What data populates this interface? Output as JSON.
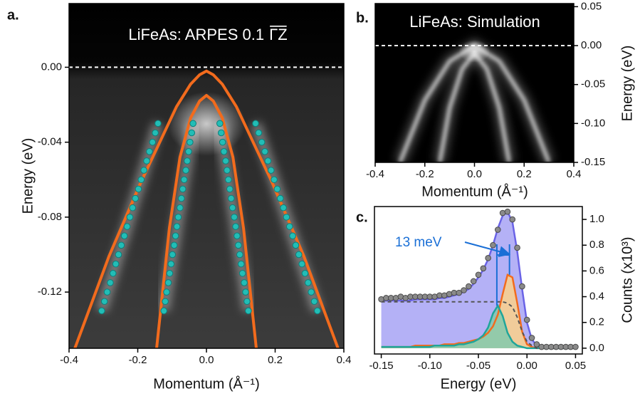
{
  "chart_data": [
    {
      "type": "band-map",
      "panel_label": "a.",
      "title": "LiFeAs: ARPES 0.1",
      "title_overline": "ΓZ",
      "x_label": "Momentum (Å⁻¹)",
      "y_label": "Energy (eV)",
      "y_axis": "left",
      "xlim": [
        -0.4,
        0.4
      ],
      "ylim": [
        -0.15,
        0.034
      ],
      "xticks": [
        -0.4,
        -0.2,
        {
          "value": 0,
          "label": "0.0"
        },
        0.2,
        0.4
      ],
      "yticks": [
        {
          "value": 0,
          "label": "0.00"
        },
        -0.04,
        -0.08,
        -0.12
      ],
      "reference_line": 0,
      "series": [
        {
          "mode": "line",
          "color": "#f26b1d",
          "x": [
            -0.383,
            -0.284,
            -0.19,
            -0.087,
            -0.046,
            -0.02,
            0,
            0.02,
            0.046,
            0.087,
            0.19,
            0.284,
            0.383
          ],
          "values": [
            -0.15,
            -0.101,
            -0.061,
            -0.021,
            -0.009,
            -0.004,
            -0.002,
            -0.004,
            -0.009,
            -0.021,
            -0.061,
            -0.101,
            -0.15
          ]
        },
        {
          "mode": "line",
          "color": "#f26b1d",
          "x": [
            -0.145,
            -0.108,
            -0.077,
            -0.046,
            -0.02,
            0,
            0.02,
            0.046,
            0.077,
            0.108,
            0.145
          ],
          "values": [
            -0.15,
            -0.086,
            -0.048,
            -0.027,
            -0.018,
            -0.015,
            -0.018,
            -0.027,
            -0.048,
            -0.086,
            -0.15
          ]
        },
        {
          "mode": "scatter",
          "color": "#22bdb6",
          "x": [
            -0.141,
            -0.149,
            -0.157,
            -0.166,
            -0.174,
            -0.182,
            -0.19,
            -0.198,
            -0.207,
            -0.215,
            -0.223,
            -0.231,
            -0.239,
            -0.248,
            -0.256,
            -0.264,
            -0.272,
            -0.28,
            -0.289,
            -0.297,
            -0.305
          ],
          "values": [
            -0.03,
            -0.035,
            -0.04,
            -0.045,
            -0.05,
            -0.055,
            -0.06,
            -0.065,
            -0.07,
            -0.075,
            -0.08,
            -0.085,
            -0.09,
            -0.095,
            -0.1,
            -0.105,
            -0.11,
            -0.115,
            -0.12,
            -0.125,
            -0.13
          ]
        },
        {
          "mode": "scatter",
          "color": "#22bdb6",
          "x": [
            -0.039,
            -0.043,
            -0.048,
            -0.052,
            -0.056,
            -0.06,
            -0.065,
            -0.069,
            -0.073,
            -0.077,
            -0.082,
            -0.086,
            -0.09,
            -0.094,
            -0.099,
            -0.103,
            -0.107,
            -0.111,
            -0.116,
            -0.12,
            -0.124
          ],
          "values": [
            -0.03,
            -0.035,
            -0.04,
            -0.045,
            -0.05,
            -0.055,
            -0.06,
            -0.065,
            -0.07,
            -0.075,
            -0.08,
            -0.085,
            -0.09,
            -0.095,
            -0.1,
            -0.105,
            -0.11,
            -0.115,
            -0.12,
            -0.125,
            -0.13
          ]
        },
        {
          "mode": "scatter",
          "color": "#22bdb6",
          "x": [
            0.039,
            0.043,
            0.047,
            0.051,
            0.056,
            0.06,
            0.064,
            0.068,
            0.072,
            0.076,
            0.081,
            0.085,
            0.089,
            0.093,
            0.097,
            0.101,
            0.105,
            0.11,
            0.114,
            0.118,
            0.122
          ],
          "values": [
            -0.03,
            -0.035,
            -0.04,
            -0.045,
            -0.05,
            -0.055,
            -0.06,
            -0.065,
            -0.07,
            -0.075,
            -0.08,
            -0.085,
            -0.09,
            -0.095,
            -0.1,
            -0.105,
            -0.11,
            -0.115,
            -0.12,
            -0.125,
            -0.13
          ]
        },
        {
          "mode": "scatter",
          "color": "#22bdb6",
          "x": [
            0.143,
            0.152,
            0.161,
            0.17,
            0.179,
            0.188,
            0.197,
            0.206,
            0.215,
            0.224,
            0.233,
            0.242,
            0.251,
            0.26,
            0.269,
            0.278,
            0.287,
            0.296,
            0.305,
            0.314,
            0.323
          ],
          "values": [
            -0.03,
            -0.035,
            -0.04,
            -0.045,
            -0.05,
            -0.055,
            -0.06,
            -0.065,
            -0.07,
            -0.075,
            -0.08,
            -0.085,
            -0.09,
            -0.095,
            -0.1,
            -0.105,
            -0.11,
            -0.115,
            -0.12,
            -0.125,
            -0.13
          ]
        }
      ]
    },
    {
      "type": "heatmap",
      "panel_label": "b.",
      "title": "LiFeAs: Simulation",
      "x_label": "Momentum (Å⁻¹)",
      "y_label": "Energy (eV)",
      "y_axis": "right",
      "xlim": [
        -0.4,
        0.4
      ],
      "ylim": [
        -0.15,
        0.054
      ],
      "xticks": [
        -0.4,
        -0.2,
        {
          "value": 0,
          "label": "0.0"
        },
        0.2,
        0.4
      ],
      "yticks": [
        0.05,
        {
          "value": 0,
          "label": "0.00"
        },
        -0.05,
        {
          "value": -0.1,
          "label": "-0.10"
        },
        -0.15
      ],
      "reference_line": 0,
      "series": [
        {
          "mode": "band",
          "color": "#ffffff",
          "x": [
            -0.3,
            -0.2,
            -0.1,
            0,
            0.1,
            0.2,
            0.3
          ],
          "values": [
            -0.15,
            -0.07,
            -0.02,
            0,
            -0.02,
            -0.07,
            -0.15
          ]
        },
        {
          "mode": "band",
          "color": "#ffffff",
          "x": [
            -0.14,
            -0.1,
            -0.05,
            0,
            0.05,
            0.1,
            0.14
          ],
          "values": [
            -0.15,
            -0.08,
            -0.03,
            -0.01,
            -0.03,
            -0.08,
            -0.15
          ]
        }
      ]
    },
    {
      "type": "spectrum",
      "panel_label": "c.",
      "x_label": "Energy (eV)",
      "y_label": "Counts (x10³)",
      "y_axis": "right",
      "xlim": [
        -0.157,
        0.057
      ],
      "ylim": [
        -0.045,
        1.1
      ],
      "xticks": [
        -0.15,
        {
          "value": -0.1,
          "label": "-0.10"
        },
        -0.05,
        {
          "value": 0,
          "label": "0.00"
        },
        0.05
      ],
      "yticks": [
        {
          "value": 0,
          "label": "0.0"
        },
        0.2,
        0.4,
        0.6,
        0.8,
        {
          "value": 1,
          "label": "1.0"
        }
      ],
      "annotation": "13 meV",
      "marker_x": [
        -0.031,
        -0.018
      ],
      "marker_color": "#1a6fd6",
      "x": [
        -0.15,
        -0.145,
        -0.14,
        -0.135,
        -0.13,
        -0.125,
        -0.12,
        -0.115,
        -0.11,
        -0.105,
        -0.1,
        -0.095,
        -0.09,
        -0.085,
        -0.08,
        -0.075,
        -0.07,
        -0.065,
        -0.06,
        -0.055,
        -0.05,
        -0.045,
        -0.04,
        -0.035,
        -0.03,
        -0.025,
        -0.02,
        -0.015,
        -0.01,
        -0.005,
        0,
        0.005,
        0.01,
        0.015,
        0.02,
        0.025,
        0.03,
        0.035,
        0.04,
        0.045,
        0.05
      ],
      "series": [
        {
          "mode": "area",
          "color": "#6a63e6",
          "fill": "#b4b1f6",
          "values": [
            0.37,
            0.37,
            0.37,
            0.37,
            0.37,
            0.37,
            0.37,
            0.38,
            0.38,
            0.38,
            0.38,
            0.38,
            0.39,
            0.39,
            0.4,
            0.41,
            0.42,
            0.44,
            0.46,
            0.5,
            0.55,
            0.61,
            0.69,
            0.8,
            0.93,
            1.03,
            1.06,
            0.98,
            0.75,
            0.46,
            0.2,
            0.07,
            0.02,
            0.01,
            0,
            0,
            0,
            0,
            0,
            0,
            0
          ]
        },
        {
          "mode": "area",
          "color": "#f26b1d",
          "fill": "#fbd18a",
          "values": [
            0.01,
            0.01,
            0.01,
            0.01,
            0.01,
            0.01,
            0.01,
            0.02,
            0.02,
            0.02,
            0.02,
            0.02,
            0.02,
            0.03,
            0.03,
            0.03,
            0.04,
            0.04,
            0.05,
            0.06,
            0.07,
            0.09,
            0.12,
            0.17,
            0.26,
            0.42,
            0.57,
            0.55,
            0.35,
            0.13,
            0.03,
            0.01,
            0,
            0,
            0,
            0,
            0,
            0,
            0,
            0,
            0
          ]
        },
        {
          "mode": "area",
          "color": "#1fa59a",
          "fill": "#82c9ad",
          "values": [
            0.01,
            0.01,
            0.01,
            0.01,
            0.01,
            0.01,
            0.01,
            0.01,
            0.01,
            0.01,
            0.01,
            0.02,
            0.02,
            0.02,
            0.02,
            0.02,
            0.03,
            0.03,
            0.04,
            0.05,
            0.07,
            0.1,
            0.16,
            0.27,
            0.33,
            0.25,
            0.12,
            0.05,
            0.02,
            0.01,
            0,
            0,
            0,
            0,
            0,
            0,
            0,
            0,
            0,
            0,
            0
          ]
        },
        {
          "mode": "dashed",
          "color": "#555555",
          "values": [
            0.36,
            0.36,
            0.36,
            0.36,
            0.36,
            0.36,
            0.36,
            0.36,
            0.36,
            0.36,
            0.36,
            0.36,
            0.36,
            0.36,
            0.36,
            0.36,
            0.36,
            0.36,
            0.36,
            0.36,
            0.36,
            0.36,
            0.36,
            0.36,
            0.36,
            0.36,
            0.35,
            0.32,
            0.24,
            0.13,
            0.05,
            0.02,
            0,
            0,
            0,
            0,
            0,
            0,
            0,
            0,
            0
          ]
        },
        {
          "mode": "scatter",
          "color": "#8a8a8a",
          "values": [
            0.38,
            0.39,
            0.39,
            0.39,
            0.4,
            0.39,
            0.4,
            0.4,
            0.4,
            0.4,
            0.4,
            0.4,
            0.41,
            0.41,
            0.42,
            0.43,
            0.43,
            0.45,
            0.48,
            0.52,
            0.57,
            0.62,
            0.7,
            0.8,
            0.92,
            1.05,
            1.06,
            1.0,
            0.78,
            0.48,
            0.22,
            0.08,
            0.03,
            0.01,
            0.01,
            0.01,
            0.01,
            0.01,
            0.01,
            0.01,
            0.01
          ]
        }
      ]
    }
  ]
}
